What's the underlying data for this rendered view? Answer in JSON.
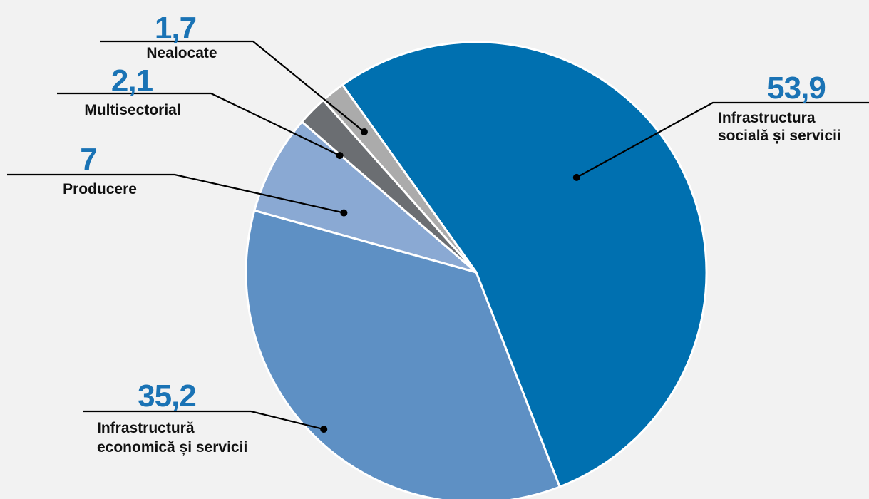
{
  "chart_data": {
    "type": "pie",
    "title": "",
    "start_angle_deg": 0,
    "direction": "clockwise",
    "slices": [
      {
        "label_lines": [
          "Infrastructura",
          "socială și servicii"
        ],
        "value": 53.9,
        "value_text": "53,9",
        "color": "#0070b0"
      },
      {
        "label_lines": [
          "Infrastructură",
          "economică și servicii"
        ],
        "value": 35.2,
        "value_text": "35,2",
        "color": "#5e90c4"
      },
      {
        "label_lines": [
          "Producere"
        ],
        "value": 7,
        "value_text": "7",
        "color": "#8aa9d3"
      },
      {
        "label_lines": [
          "Multisectorial"
        ],
        "value": 2.1,
        "value_text": "2,1",
        "color": "#6b6e72"
      },
      {
        "label_lines": [
          "Nealocate"
        ],
        "value": 1.7,
        "value_text": "1,7",
        "color": "#ababab"
      }
    ]
  },
  "colors": {
    "background": "#f2f2f2",
    "value_text": "#1a73b5",
    "label_text": "#111111",
    "slice_border": "#ffffff",
    "leader_line": "#000000"
  }
}
